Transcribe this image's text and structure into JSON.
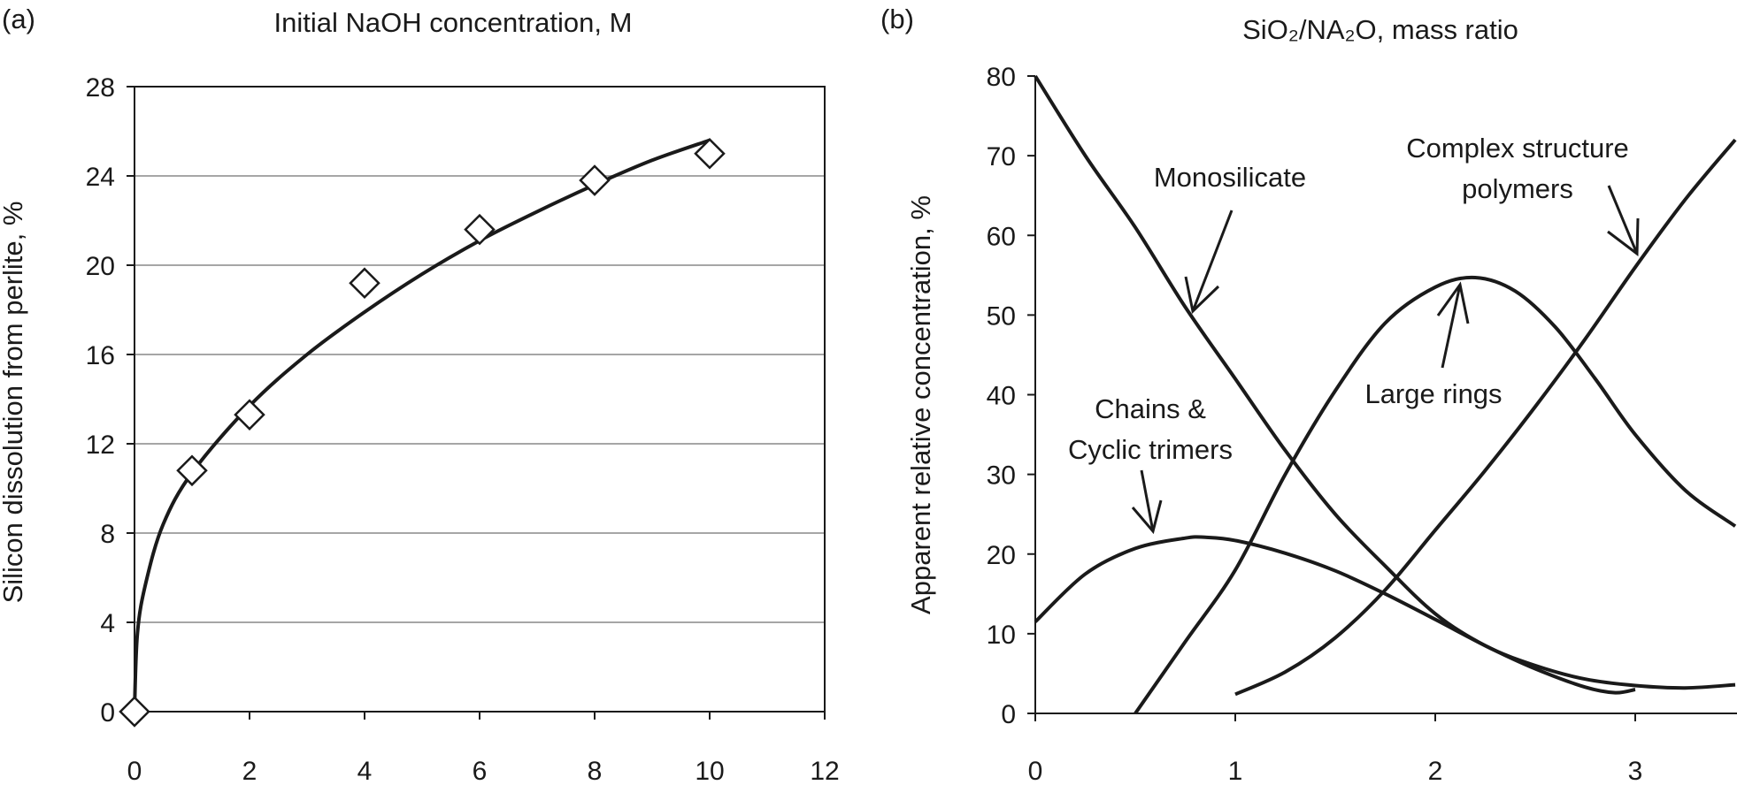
{
  "chart_data": [
    {
      "panel_label": "(a)",
      "type": "scatter",
      "title": "Initial NaOH concentration, M",
      "xlabel": "",
      "ylabel": "Silicon dissolution from perlite, %",
      "xlim": [
        0,
        12
      ],
      "ylim": [
        0,
        28
      ],
      "x_ticks": [
        "0",
        "2",
        "4",
        "6",
        "8",
        "10",
        "12"
      ],
      "y_ticks": [
        "0",
        "4",
        "8",
        "12",
        "16",
        "20",
        "24",
        "28"
      ],
      "grid": "horizontal",
      "marker": "open-diamond",
      "points": [
        {
          "x": 0,
          "y": 0
        },
        {
          "x": 1,
          "y": 10.8
        },
        {
          "x": 2,
          "y": 13.3
        },
        {
          "x": 4,
          "y": 19.2
        },
        {
          "x": 6,
          "y": 21.6
        },
        {
          "x": 8,
          "y": 23.8
        },
        {
          "x": 10,
          "y": 25.0
        }
      ],
      "fit_curve": [
        {
          "x": 0,
          "y": 0
        },
        {
          "x": 0.05,
          "y": 3.5
        },
        {
          "x": 0.2,
          "y": 5.8
        },
        {
          "x": 0.5,
          "y": 8.4
        },
        {
          "x": 1,
          "y": 10.7
        },
        {
          "x": 2,
          "y": 13.7
        },
        {
          "x": 3,
          "y": 16.0
        },
        {
          "x": 4,
          "y": 17.9
        },
        {
          "x": 5,
          "y": 19.6
        },
        {
          "x": 6,
          "y": 21.1
        },
        {
          "x": 7,
          "y": 22.4
        },
        {
          "x": 8,
          "y": 23.6
        },
        {
          "x": 9,
          "y": 24.7
        },
        {
          "x": 10,
          "y": 25.6
        }
      ]
    },
    {
      "panel_label": "(b)",
      "type": "line",
      "title": "SiO₂/NA₂O, mass ratio",
      "xlabel": "",
      "ylabel": "Apparent relative concentration, %",
      "xlim": [
        0,
        3.5
      ],
      "ylim": [
        0,
        80
      ],
      "x_ticks": [
        "0",
        "1",
        "2",
        "3"
      ],
      "y_ticks": [
        "0",
        "10",
        "20",
        "30",
        "40",
        "50",
        "60",
        "70",
        "80"
      ],
      "grid": "none",
      "series": [
        {
          "name": "Monosilicate",
          "x": [
            0,
            0.25,
            0.5,
            0.75,
            1.0,
            1.25,
            1.5,
            1.75,
            2.0,
            2.25,
            2.5,
            2.75,
            3.0,
            3.25,
            3.5
          ],
          "y": [
            80,
            70,
            61,
            51,
            42,
            33,
            25,
            18.5,
            12.5,
            8.5,
            6,
            4.3,
            3.5,
            3.2,
            3.6
          ]
        },
        {
          "name": "Large rings",
          "x": [
            0.5,
            0.75,
            1.0,
            1.25,
            1.5,
            1.75,
            2.0,
            2.2,
            2.4,
            2.6,
            2.8,
            3.0,
            3.25,
            3.5
          ],
          "y": [
            0,
            9,
            18,
            30,
            40.5,
            49,
            53.5,
            54.7,
            53,
            48.5,
            42,
            35,
            28,
            23.5
          ]
        },
        {
          "name": "Chains & Cyclic trimers",
          "x": [
            0,
            0.25,
            0.5,
            0.75,
            0.85,
            1.0,
            1.25,
            1.5,
            1.75,
            2.0,
            2.25,
            2.5,
            2.75,
            2.9,
            3.0
          ],
          "y": [
            11.5,
            17.5,
            20.7,
            22.0,
            22.1,
            21.7,
            20.1,
            17.9,
            15.0,
            11.8,
            8.5,
            5.6,
            3.3,
            2.6,
            3.0
          ]
        },
        {
          "name": "Complex structure polymers",
          "x": [
            1.0,
            1.25,
            1.5,
            1.75,
            2.0,
            2.25,
            2.5,
            2.75,
            3.0,
            3.25,
            3.5
          ],
          "y": [
            2.4,
            5.2,
            9.5,
            15.5,
            23,
            30.5,
            38.5,
            47,
            56,
            64.5,
            72
          ]
        }
      ],
      "annotations": [
        {
          "lines": [
            "Monosilicate"
          ]
        },
        {
          "lines": [
            "Complex structure",
            "polymers"
          ]
        },
        {
          "lines": [
            "Large rings"
          ]
        },
        {
          "lines": [
            "Chains &",
            "Cyclic trimers"
          ]
        }
      ]
    }
  ]
}
